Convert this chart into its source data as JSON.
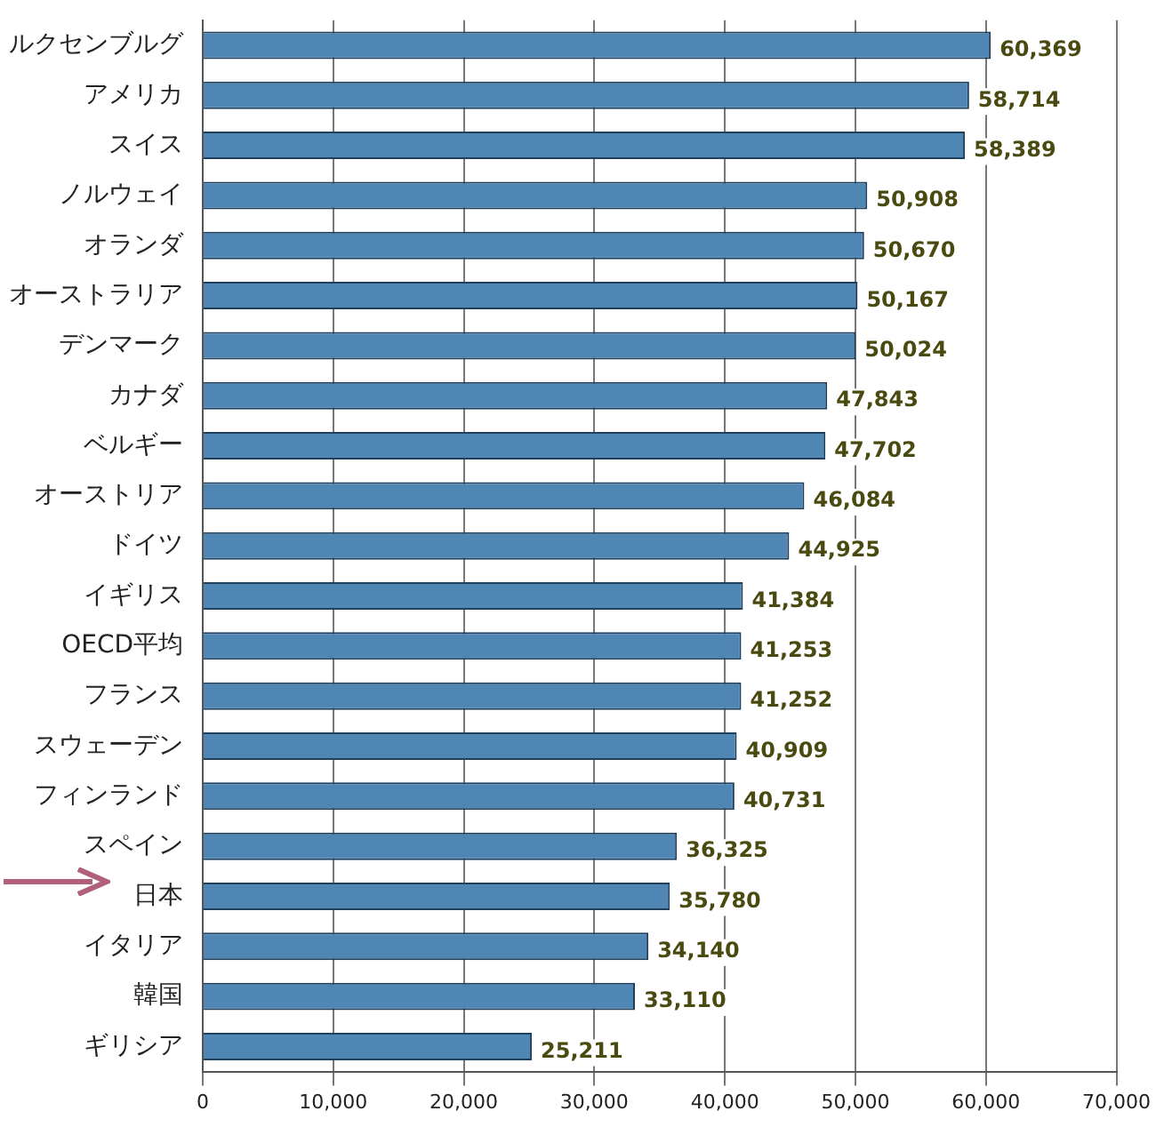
{
  "chart_data": {
    "type": "bar",
    "orientation": "horizontal",
    "categories": [
      "ルクセンブルグ",
      "アメリカ",
      "スイス",
      "ノルウェイ",
      "オランダ",
      "オーストラリア",
      "デンマーク",
      "カナダ",
      "ベルギー",
      "オーストリア",
      "ドイツ",
      "イギリス",
      "OECD平均",
      "フランス",
      "スウェーデン",
      "フィンランド",
      "スペイン",
      "日本",
      "イタリア",
      "韓国",
      "ギリシア"
    ],
    "values": [
      60369,
      58714,
      58389,
      50908,
      50670,
      50167,
      50024,
      47843,
      47702,
      46084,
      44925,
      41384,
      41253,
      41252,
      40909,
      40731,
      36325,
      35780,
      34140,
      33110,
      25211
    ],
    "value_labels": [
      "60,369",
      "58,714",
      "58,389",
      "50,908",
      "50,670",
      "50,167",
      "50,024",
      "47,843",
      "47,702",
      "46,084",
      "44,925",
      "41,384",
      "41,253",
      "41,252",
      "40,909",
      "40,731",
      "36,325",
      "35,780",
      "34,140",
      "33,110",
      "25,211"
    ],
    "color": "#4f86b4",
    "xlim": [
      0,
      70000
    ],
    "xticks": [
      0,
      {
        "value": 10000,
        "label": "10,000"
      },
      {
        "value": 20000,
        "label": "20,000"
      },
      {
        "value": 30000,
        "label": "30,000"
      },
      {
        "value": 40000,
        "label": "40,000"
      },
      {
        "value": 50000,
        "label": "50,000"
      },
      {
        "value": 60000,
        "label": "60,000"
      },
      {
        "value": 70000,
        "label": "70,000"
      }
    ],
    "grid": "x"
  }
}
